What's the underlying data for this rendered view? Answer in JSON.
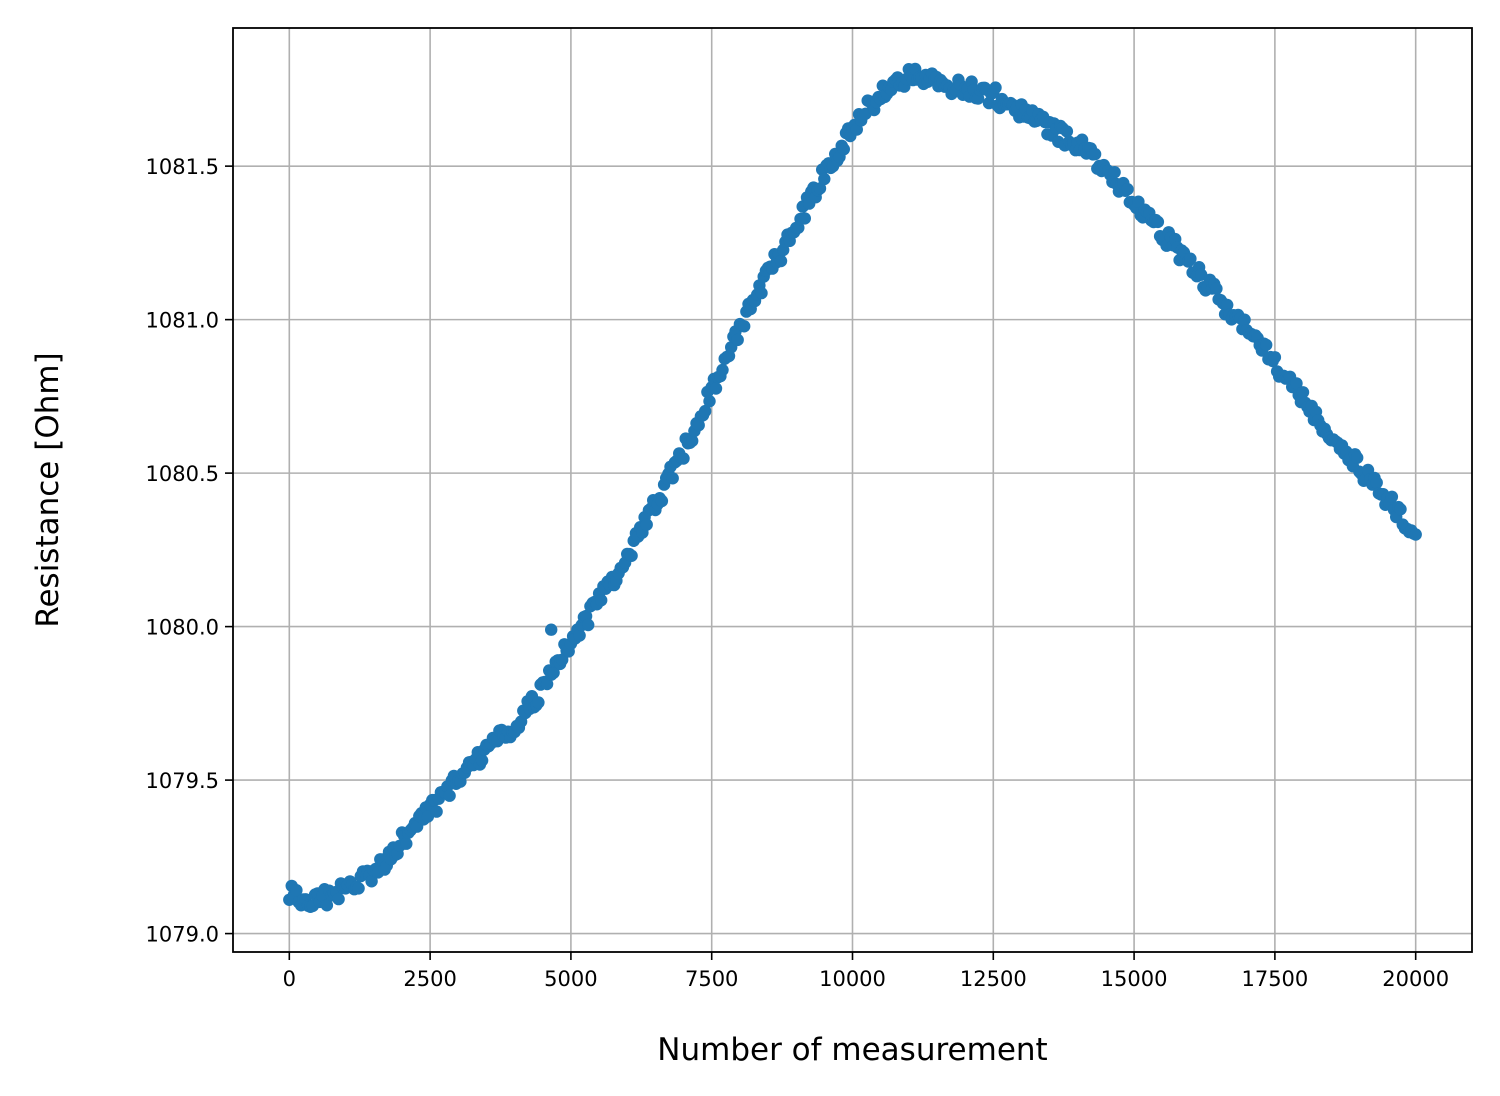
{
  "chart_data": {
    "type": "scatter",
    "title": "",
    "xlabel": "Number of measurement",
    "ylabel": "Resistance [Ohm]",
    "xlim": [
      -1000,
      21000
    ],
    "ylim": [
      1078.94,
      1081.95
    ],
    "xticks": [
      0,
      2500,
      5000,
      7500,
      10000,
      12500,
      15000,
      17500,
      20000
    ],
    "xtick_labels": [
      "0",
      "2500",
      "5000",
      "7500",
      "10000",
      "12500",
      "15000",
      "17500",
      "20000"
    ],
    "yticks": [
      1079.0,
      1079.5,
      1080.0,
      1080.5,
      1081.0,
      1081.5
    ],
    "ytick_labels": [
      "1079.0",
      "1079.5",
      "1080.0",
      "1080.5",
      "1081.0",
      "1081.5"
    ],
    "grid": true,
    "marker_color": "#1f77b4",
    "series": [
      {
        "x": [
          0,
          250,
          500,
          750,
          1000,
          1500,
          2000,
          2500,
          3000,
          3500,
          4000,
          4500,
          5000,
          5500,
          6000,
          6500,
          7000,
          7500,
          8000,
          8500,
          9000,
          9500,
          10000,
          10500,
          10800,
          11000,
          11300,
          11600,
          12000,
          12500,
          13000,
          13500,
          14000,
          14500,
          15000,
          15500,
          16000,
          16500,
          17000,
          17500,
          18000,
          18500,
          19000,
          19500,
          20000
        ],
        "values": [
          1079.13,
          1079.12,
          1079.11,
          1079.12,
          1079.15,
          1079.2,
          1079.3,
          1079.4,
          1079.5,
          1079.6,
          1079.68,
          1079.79,
          1079.95,
          1080.08,
          1080.23,
          1080.4,
          1080.57,
          1080.77,
          1080.97,
          1081.15,
          1081.3,
          1081.48,
          1081.62,
          1081.74,
          1081.78,
          1081.79,
          1081.79,
          1081.77,
          1081.75,
          1081.73,
          1081.68,
          1081.62,
          1081.57,
          1081.49,
          1081.39,
          1081.28,
          1081.18,
          1081.07,
          1080.97,
          1080.86,
          1080.74,
          1080.62,
          1080.52,
          1080.41,
          1080.3
        ]
      }
    ],
    "outliers": [
      {
        "x": 4650,
        "y": 1079.99
      }
    ]
  }
}
